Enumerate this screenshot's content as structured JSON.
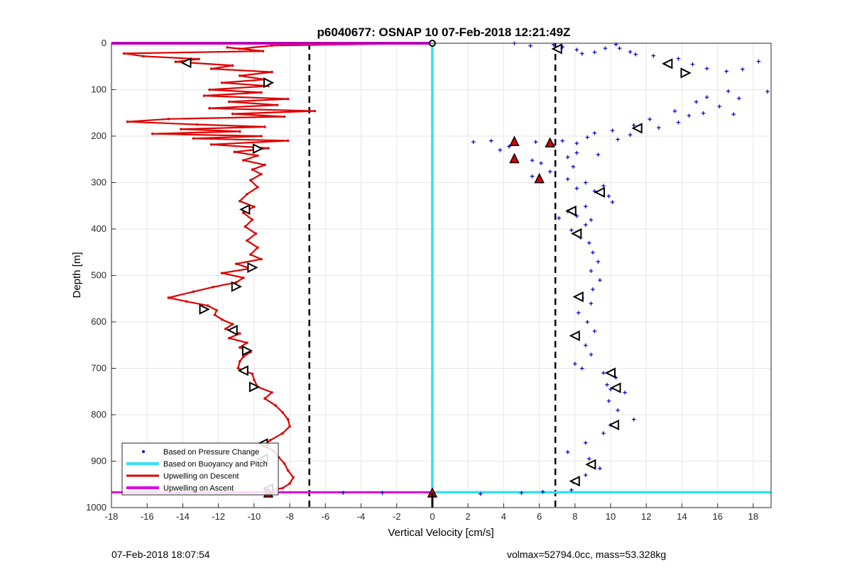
{
  "chart_data": {
    "type": "scatter",
    "title": "p6040677: OSNAP 10 07-Feb-2018 12:21:49Z",
    "xlabel": "Vertical Velocity [cm/s]",
    "ylabel": "Depth [m]",
    "xlim": [
      -18,
      19
    ],
    "ylim": [
      0,
      1000
    ],
    "y_reversed": true,
    "xticks": [
      -18,
      -16,
      -14,
      -12,
      -10,
      -8,
      -6,
      -4,
      -2,
      0,
      2,
      4,
      6,
      8,
      10,
      12,
      14,
      16,
      18
    ],
    "yticks": [
      0,
      100,
      200,
      300,
      400,
      500,
      600,
      700,
      800,
      900,
      1000
    ],
    "grid": true,
    "legend_position": "bottom-left",
    "legend": [
      "Based on Pressure Change",
      "Based on Buoyancy and Pitch",
      "Upwelling on Descent",
      "Upwelling on Ascent"
    ],
    "colors": {
      "pressure": "#0000cc",
      "buoyancy": "#33e0ee",
      "descent": "#dd0000",
      "ascent": "#e000e0",
      "threshold": "#000000"
    },
    "series": [
      {
        "name": "Based on Pressure Change",
        "style": "points",
        "points": [
          [
            4.6,
            0
          ],
          [
            5.5,
            5
          ],
          [
            6.8,
            3
          ],
          [
            7.3,
            8
          ],
          [
            8.1,
            14
          ],
          [
            8.4,
            22
          ],
          [
            9.1,
            19
          ],
          [
            9.7,
            11
          ],
          [
            10.3,
            2
          ],
          [
            10.5,
            11
          ],
          [
            11.1,
            18
          ],
          [
            11.4,
            24
          ],
          [
            12.4,
            27
          ],
          [
            13.2,
            42
          ],
          [
            13.8,
            33
          ],
          [
            14.6,
            45
          ],
          [
            15.4,
            54
          ],
          [
            16.5,
            60
          ],
          [
            17.4,
            56
          ],
          [
            18.3,
            39
          ],
          [
            18.8,
            104
          ],
          [
            16.6,
            103
          ],
          [
            15.4,
            116
          ],
          [
            17.2,
            118
          ],
          [
            14.8,
            126
          ],
          [
            16.1,
            136
          ],
          [
            13.6,
            146
          ],
          [
            15.2,
            150
          ],
          [
            14.4,
            156
          ],
          [
            16.9,
            153
          ],
          [
            12.2,
            163
          ],
          [
            13.8,
            170
          ],
          [
            11.3,
            176
          ],
          [
            12.7,
            182
          ],
          [
            10.1,
            188
          ],
          [
            9.1,
            193
          ],
          [
            11.1,
            197
          ],
          [
            8.7,
            202
          ],
          [
            10.4,
            207
          ],
          [
            7.3,
            210
          ],
          [
            8.1,
            215
          ],
          [
            6.8,
            220
          ],
          [
            5.8,
            212
          ],
          [
            4.3,
            222
          ],
          [
            3.3,
            210
          ],
          [
            2.3,
            212
          ],
          [
            3.8,
            230
          ],
          [
            4.6,
            247
          ],
          [
            5.6,
            252
          ],
          [
            6.1,
            258
          ],
          [
            7.6,
            245
          ],
          [
            8.1,
            236
          ],
          [
            9.3,
            240
          ],
          [
            7.9,
            266
          ],
          [
            6.6,
            276
          ],
          [
            5.6,
            286
          ],
          [
            6.1,
            298
          ],
          [
            7.6,
            292
          ],
          [
            8.6,
            300
          ],
          [
            9.6,
            307
          ],
          [
            8.1,
            312
          ],
          [
            9.1,
            318
          ],
          [
            9.9,
            329
          ],
          [
            10.1,
            342
          ],
          [
            8.6,
            351
          ],
          [
            7.6,
            362
          ],
          [
            8.1,
            372
          ],
          [
            8.9,
            380
          ],
          [
            7.1,
            376
          ],
          [
            8.6,
            391
          ],
          [
            7.8,
            402
          ],
          [
            8.3,
            418
          ],
          [
            8.8,
            430
          ],
          [
            9.0,
            450
          ],
          [
            9.3,
            470
          ],
          [
            8.9,
            490
          ],
          [
            9.4,
            510
          ],
          [
            9.0,
            530
          ],
          [
            8.4,
            548
          ],
          [
            8.9,
            560
          ],
          [
            8.2,
            580
          ],
          [
            8.7,
            600
          ],
          [
            9.1,
            620
          ],
          [
            8.1,
            630
          ],
          [
            8.6,
            650
          ],
          [
            8.9,
            670
          ],
          [
            8.0,
            690
          ],
          [
            8.4,
            700
          ],
          [
            9.6,
            710
          ],
          [
            10.3,
            720
          ],
          [
            9.8,
            735
          ],
          [
            10.0,
            745
          ],
          [
            10.8,
            752
          ],
          [
            9.9,
            770
          ],
          [
            10.4,
            790
          ],
          [
            11.3,
            810
          ],
          [
            10.0,
            822
          ],
          [
            9.6,
            840
          ],
          [
            8.6,
            860
          ],
          [
            7.6,
            880
          ],
          [
            8.8,
            895
          ],
          [
            9.0,
            908
          ],
          [
            9.4,
            915
          ],
          [
            8.6,
            930
          ],
          [
            7.9,
            945
          ],
          [
            7.8,
            962
          ],
          [
            -5.0,
            968
          ],
          [
            -2.8,
            968
          ],
          [
            2.7,
            970
          ],
          [
            5.0,
            968
          ],
          [
            6.2,
            966
          ]
        ]
      },
      {
        "name": "Based on Buoyancy and Pitch",
        "style": "line",
        "points": [
          [
            0,
            0
          ],
          [
            0,
            967
          ],
          [
            6.8,
            967
          ],
          [
            19,
            967
          ]
        ]
      },
      {
        "name": "Upwelling on Descent",
        "style": "line",
        "points": [
          [
            -0.2,
            0
          ],
          [
            -9.0,
            5
          ],
          [
            -10.8,
            12
          ],
          [
            -11.5,
            9
          ],
          [
            -9.5,
            17
          ],
          [
            -17.3,
            22
          ],
          [
            -16.2,
            28
          ],
          [
            -13.1,
            34
          ],
          [
            -14.4,
            40
          ],
          [
            -11.2,
            48
          ],
          [
            -12.4,
            55
          ],
          [
            -9.0,
            62
          ],
          [
            -10.8,
            70
          ],
          [
            -9.4,
            78
          ],
          [
            -11.8,
            85
          ],
          [
            -9.2,
            92
          ],
          [
            -12.5,
            100
          ],
          [
            -9.6,
            106
          ],
          [
            -12.8,
            113
          ],
          [
            -8.1,
            120
          ],
          [
            -11.4,
            126
          ],
          [
            -8.7,
            133
          ],
          [
            -12.5,
            140
          ],
          [
            -6.6,
            146
          ],
          [
            -11.2,
            152
          ],
          [
            -8.3,
            158
          ],
          [
            -14.8,
            163
          ],
          [
            -17.1,
            169
          ],
          [
            -13.2,
            175
          ],
          [
            -9.4,
            180
          ],
          [
            -14.1,
            185
          ],
          [
            -10.8,
            190
          ],
          [
            -15.7,
            195
          ],
          [
            -9.6,
            200
          ],
          [
            -13.4,
            205
          ],
          [
            -8.1,
            210
          ],
          [
            -12.4,
            218
          ],
          [
            -9.2,
            226
          ],
          [
            -11.1,
            234
          ],
          [
            -9.8,
            242
          ],
          [
            -10.6,
            252
          ],
          [
            -9.4,
            262
          ],
          [
            -10.1,
            272
          ],
          [
            -9.6,
            282
          ],
          [
            -10.2,
            295
          ],
          [
            -9.8,
            310
          ],
          [
            -10.4,
            325
          ],
          [
            -10.8,
            340
          ],
          [
            -10.0,
            352
          ],
          [
            -10.6,
            365
          ],
          [
            -10.1,
            380
          ],
          [
            -10.5,
            395
          ],
          [
            -9.9,
            410
          ],
          [
            -10.4,
            425
          ],
          [
            -9.8,
            440
          ],
          [
            -10.2,
            455
          ],
          [
            -9.6,
            465
          ],
          [
            -11.0,
            475
          ],
          [
            -10.2,
            485
          ],
          [
            -11.8,
            495
          ],
          [
            -10.6,
            505
          ],
          [
            -11.0,
            515
          ],
          [
            -12.3,
            525
          ],
          [
            -13.4,
            535
          ],
          [
            -14.8,
            548
          ],
          [
            -13.8,
            556
          ],
          [
            -12.6,
            565
          ],
          [
            -12.1,
            575
          ],
          [
            -12.2,
            585
          ],
          [
            -11.8,
            595
          ],
          [
            -11.2,
            605
          ],
          [
            -11.6,
            615
          ],
          [
            -10.8,
            625
          ],
          [
            -11.4,
            635
          ],
          [
            -10.4,
            645
          ],
          [
            -10.8,
            655
          ],
          [
            -10.2,
            665
          ],
          [
            -10.6,
            675
          ],
          [
            -10.8,
            685
          ],
          [
            -10.9,
            700
          ],
          [
            -10.1,
            712
          ],
          [
            -10.0,
            725
          ],
          [
            -9.8,
            740
          ],
          [
            -9.0,
            752
          ],
          [
            -9.4,
            765
          ],
          [
            -8.8,
            780
          ],
          [
            -8.4,
            795
          ],
          [
            -8.1,
            810
          ],
          [
            -8.0,
            825
          ],
          [
            -8.4,
            840
          ],
          [
            -9.1,
            855
          ],
          [
            -9.4,
            865
          ],
          [
            -8.9,
            878
          ],
          [
            -8.6,
            892
          ],
          [
            -8.3,
            905
          ],
          [
            -8.1,
            920
          ],
          [
            -7.8,
            935
          ],
          [
            -8.0,
            948
          ],
          [
            -8.4,
            958
          ],
          [
            -9.4,
            965
          ]
        ]
      },
      {
        "name": "Upwelling on Ascent",
        "style": "line",
        "points": [
          [
            -18,
            0
          ],
          [
            0,
            0
          ]
        ]
      }
    ],
    "thresholds": [
      -6.9,
      6.9
    ],
    "markers": {
      "descent_left": [
        [
          -13.8,
          42
        ],
        [
          -10.6,
          705
        ],
        [
          -11.2,
          618
        ],
        [
          -10.5,
          358
        ],
        [
          -9.5,
          862
        ],
        [
          -9.5,
          895
        ],
        [
          -9.2,
          959
        ]
      ],
      "descent_right": [
        [
          -9.2,
          85
        ],
        [
          -9.8,
          227
        ],
        [
          -10.1,
          483
        ],
        [
          -11.0,
          524
        ],
        [
          -12.8,
          573
        ],
        [
          -10.4,
          662
        ],
        [
          -10.0,
          740
        ]
      ],
      "ascent_left": [
        [
          7.0,
          12
        ],
        [
          13.2,
          44
        ],
        [
          11.5,
          183
        ],
        [
          9.4,
          321
        ],
        [
          7.8,
          361
        ],
        [
          8.1,
          410
        ],
        [
          8.2,
          546
        ],
        [
          8.0,
          630
        ],
        [
          10.0,
          710
        ],
        [
          10.3,
          742
        ],
        [
          10.2,
          822
        ],
        [
          8.9,
          907
        ],
        [
          8.0,
          943
        ]
      ],
      "ascent_right": [
        [
          14.2,
          64
        ]
      ],
      "up_filled": [
        [
          4.6,
          211
        ],
        [
          6.0,
          291
        ],
        [
          6.6,
          214
        ],
        [
          4.6,
          248
        ],
        [
          0,
          968
        ],
        [
          -9.2,
          968
        ]
      ],
      "top_marker": [
        0,
        0
      ]
    }
  },
  "footer": {
    "left": "07-Feb-2018 18:07:54",
    "right": "volmax=52794.0cc, mass=53.328kg"
  }
}
